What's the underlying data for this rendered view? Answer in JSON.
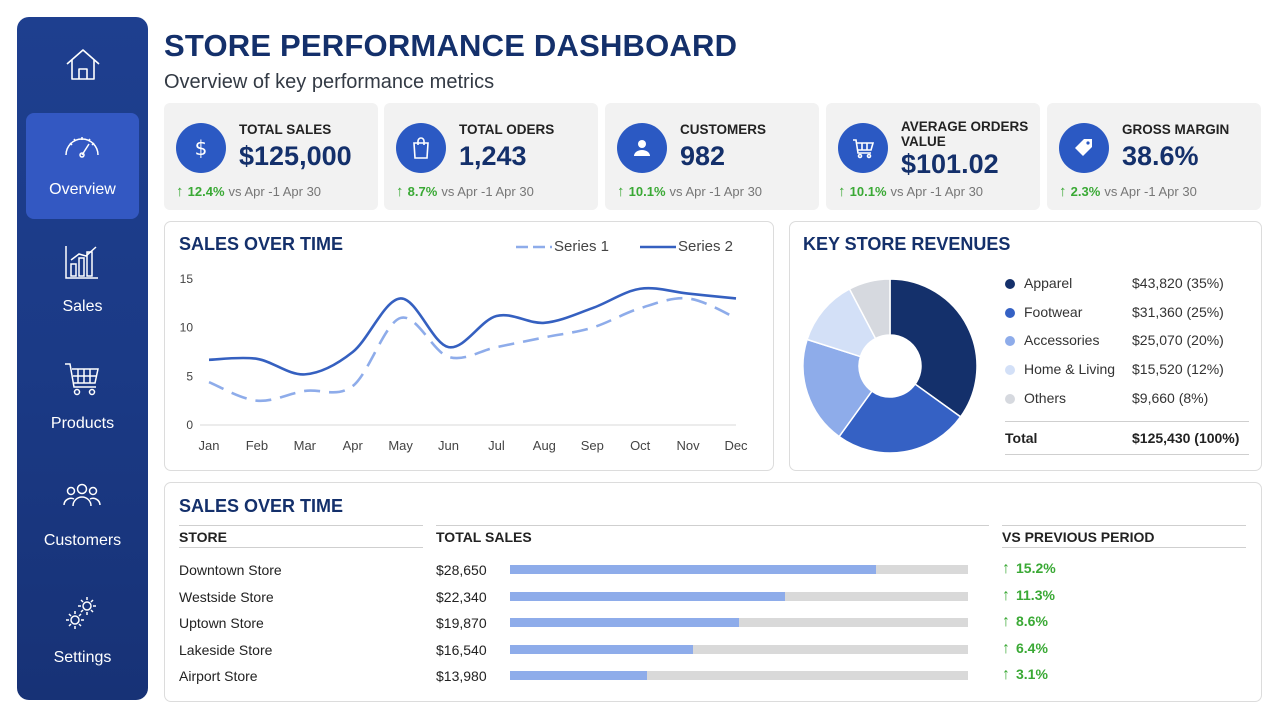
{
  "sidebar": {
    "items": [
      {
        "label": "Overview",
        "icon": "gauge-icon",
        "active": true
      },
      {
        "label": "Sales",
        "icon": "bar-chart-icon"
      },
      {
        "label": "Products",
        "icon": "cart-icon"
      },
      {
        "label": "Customers",
        "icon": "users-icon"
      },
      {
        "label": "Settings",
        "icon": "gear-icon"
      }
    ],
    "home_icon": "home-icon"
  },
  "header": {
    "title": "STORE PERFORMANCE DASHBOARD",
    "subtitle": "Overview of key performance metrics"
  },
  "kpis": [
    {
      "label": "TOTAL SALES",
      "value": "$125,000",
      "change": "12.4%",
      "period": "vs Apr -1 Apr 30",
      "icon": "dollar-icon"
    },
    {
      "label": "TOTAL ODERS",
      "value": "1,243",
      "change": "8.7%",
      "period": "vs Apr -1 Apr 30",
      "icon": "shopping-bag-icon"
    },
    {
      "label": "CUSTOMERS",
      "value": "982",
      "change": "10.1%",
      "period": "vs Apr -1 Apr 30",
      "icon": "user-icon"
    },
    {
      "label": "AVERAGE ORDERS VALUE",
      "value": "$101.02",
      "change": "10.1%",
      "period": "vs Apr -1 Apr 30",
      "icon": "cart-icon"
    },
    {
      "label": "GROSS MARGIN",
      "value": "38.6%",
      "change": "2.3%",
      "period": "vs Apr -1 Apr 30",
      "icon": "tag-icon"
    }
  ],
  "colors": {
    "brand_dark": "#14306b",
    "accent": "#2b59c3",
    "positive": "#3aa935",
    "series1": "#8eacea",
    "series2": "#3560c0"
  },
  "line_panel": {
    "title": "SALES OVER TIME"
  },
  "pie_panel": {
    "title": "KEY STORE REVENUES",
    "legend": [
      {
        "name": "Apparel",
        "value": "$43,820 (35%)",
        "color": "#14306b"
      },
      {
        "name": "Footwear",
        "value": "$31,360 (25%)",
        "color": "#3561c4"
      },
      {
        "name": "Accessories",
        "value": "$25,070 (20%)",
        "color": "#8eacea"
      },
      {
        "name": "Home & Living",
        "value": "$15,520 (12%)",
        "color": "#d3e0f7"
      },
      {
        "name": "Others",
        "value": "$9,660 (8%)",
        "color": "#d6d9df"
      }
    ],
    "total_label": "Total",
    "total_value": "$125,430 (100%)"
  },
  "table_panel": {
    "title": "SALES OVER TIME",
    "headers": [
      "STORE",
      "TOTAL SALES",
      "VS PREVIOUS PERIOD"
    ],
    "rows": [
      {
        "store": "Downtown Store",
        "sales": "$28,650",
        "fraction": 0.8,
        "change": "15.2%"
      },
      {
        "store": "Westside Store",
        "sales": "$22,340",
        "fraction": 0.6,
        "change": "11.3%"
      },
      {
        "store": "Uptown Store",
        "sales": "$19,870",
        "fraction": 0.5,
        "change": "8.6%"
      },
      {
        "store": "Lakeside Store",
        "sales": "$16,540",
        "fraction": 0.4,
        "change": "6.4%"
      },
      {
        "store": "Airport Store",
        "sales": "$13,980",
        "fraction": 0.3,
        "change": "3.1%"
      }
    ]
  },
  "chart_data": [
    {
      "type": "line",
      "title": "SALES OVER TIME",
      "x": [
        "Jan",
        "Feb",
        "Mar",
        "Apr",
        "May",
        "Jun",
        "Jul",
        "Aug",
        "Sep",
        "Oct",
        "Nov",
        "Dec"
      ],
      "series": [
        {
          "name": "Series 1",
          "values": [
            4.4,
            2.5,
            3.5,
            4.0,
            11.0,
            7.0,
            8.0,
            9.0,
            10.0,
            12.0,
            13.0,
            11.0
          ],
          "style": "dashed"
        },
        {
          "name": "Series 2",
          "values": [
            6.7,
            6.8,
            5.2,
            7.5,
            13.0,
            8.0,
            11.2,
            10.5,
            12.0,
            14.0,
            13.5,
            13.0
          ],
          "style": "solid"
        }
      ],
      "yticks": [
        0,
        5,
        10,
        15
      ],
      "ylim": [
        0,
        15
      ],
      "legend": "top-right",
      "grid": false
    },
    {
      "type": "pie",
      "title": "KEY STORE REVENUES",
      "categories": [
        "Apparel",
        "Footwear",
        "Accessories",
        "Home & Living",
        "Others"
      ],
      "values": [
        43820,
        31360,
        25070,
        15520,
        9660
      ],
      "donut": true,
      "legend": "right"
    }
  ]
}
